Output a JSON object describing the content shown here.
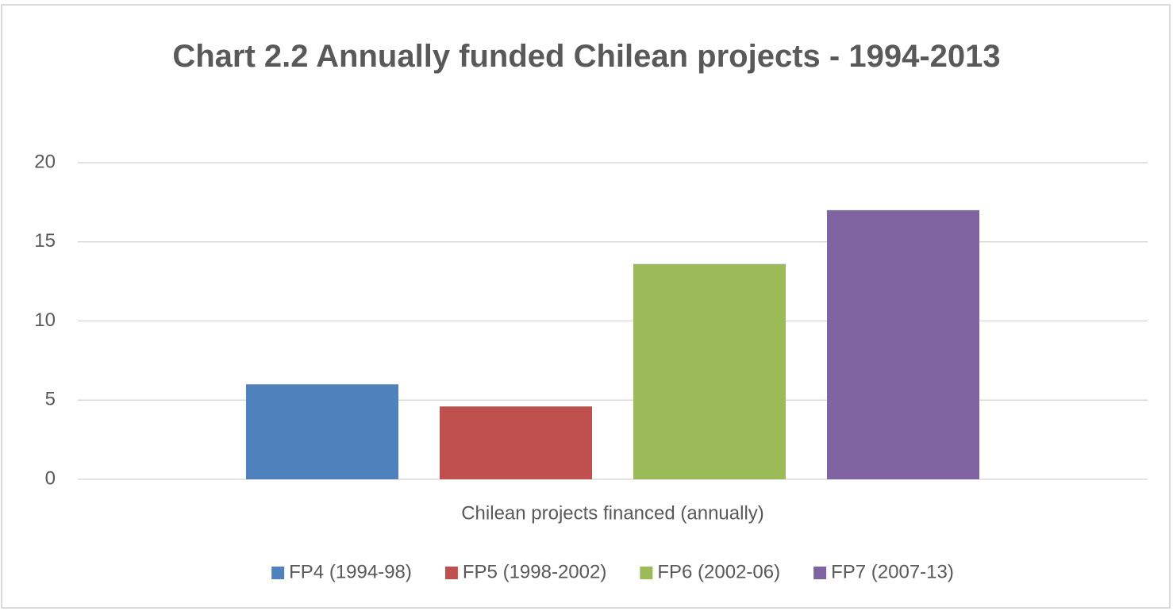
{
  "chart_data": {
    "type": "bar",
    "title": "Chart 2.2 Annually funded Chilean projects - 1994-2013",
    "categories": [
      "Chilean projects financed (annually)"
    ],
    "series": [
      {
        "name": "FP4 (1994-98)",
        "color": "#4f81bd",
        "values": [
          6
        ]
      },
      {
        "name": "FP5 (1998-2002)",
        "color": "#c0504d",
        "values": [
          4.6
        ]
      },
      {
        "name": "FP6 (2002-06)",
        "color": "#9bbb59",
        "values": [
          13.6
        ]
      },
      {
        "name": "FP7 (2007-13)",
        "color": "#8064a2",
        "values": [
          17
        ]
      }
    ],
    "ylim": [
      0,
      20
    ],
    "yticks": [
      0,
      5,
      10,
      15,
      20
    ],
    "grid": true,
    "legend": "bottom"
  }
}
